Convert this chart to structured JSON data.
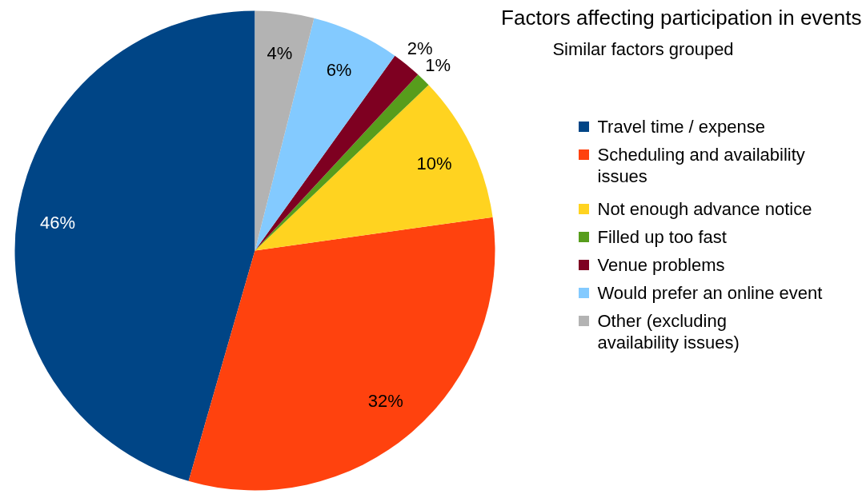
{
  "chart_data": {
    "type": "pie",
    "title": "Factors affecting participation in events",
    "subtitle": "Similar factors grouped",
    "categories": [
      "Travel time / expense",
      "Scheduling and availability issues",
      "Not enough advance notice",
      "Filled up too fast",
      "Venue problems",
      "Would prefer an online event",
      "Other (excluding availability issues)"
    ],
    "values": [
      46,
      32,
      10,
      1,
      2,
      6,
      4
    ],
    "value_labels": [
      "46%",
      "32%",
      "10%",
      "1%",
      "2%",
      "6%",
      "4%"
    ],
    "colors": [
      "#004586",
      "#ff420e",
      "#ffd320",
      "#579d1c",
      "#7e0021",
      "#83caff",
      "#b3b3b3"
    ],
    "legend": "right"
  }
}
